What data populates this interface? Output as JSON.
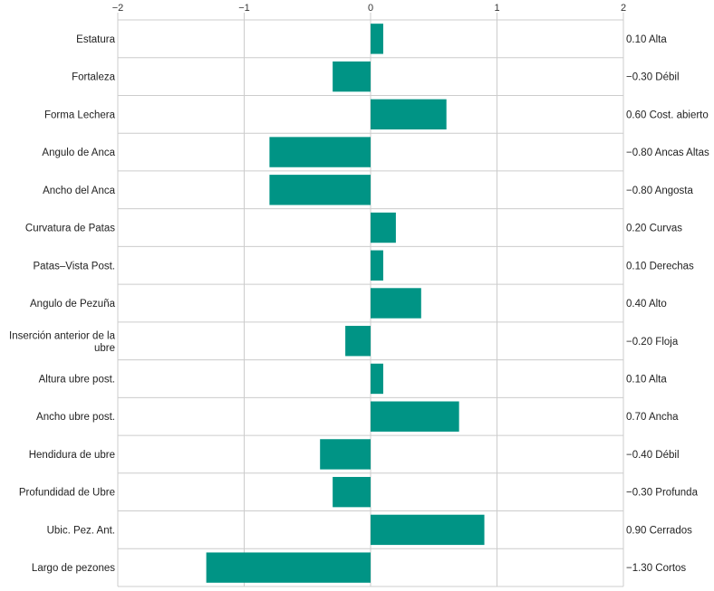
{
  "chart_data": {
    "type": "bar",
    "orientation": "horizontal",
    "categories": [
      "Estatura",
      "Fortaleza",
      "Forma Lechera",
      "Angulo de Anca",
      "Ancho del Anca",
      "Curvatura de Patas",
      "Patas–Vista Post.",
      "Angulo de Pezuña",
      "Inserción anterior de la ubre",
      "Altura ubre post.",
      "Ancho ubre post.",
      "Hendidura de ubre",
      "Profundidad de Ubre",
      "Ubic. Pez. Ant.",
      "Largo de pezones"
    ],
    "values": [
      0.1,
      -0.3,
      0.6,
      -0.8,
      -0.8,
      0.2,
      0.1,
      0.4,
      -0.2,
      0.1,
      0.7,
      -0.4,
      -0.3,
      0.9,
      -1.3
    ],
    "value_labels": [
      "0.10 Alta",
      "−0.30 Débil",
      "0.60 Cost. abierto",
      "−0.80 Ancas Altas",
      "−0.80 Angosta",
      "0.20 Curvas",
      "0.10 Derechas",
      "0.40 Alto",
      "−0.20 Floja",
      "0.10 Alta",
      "0.70 Ancha",
      "−0.40 Débil",
      "−0.30 Profunda",
      "0.90 Cerrados",
      "−1.30 Cortos"
    ],
    "xlim": [
      -2,
      2
    ],
    "xticks": [
      -2,
      -1,
      0,
      1,
      2
    ],
    "xtick_labels": [
      "−2",
      "−1",
      "0",
      "1",
      "2"
    ],
    "xaxis_position": "top",
    "grid": true,
    "legend": "none",
    "bar_color": "#009485",
    "grid_color": "#cccccc"
  }
}
